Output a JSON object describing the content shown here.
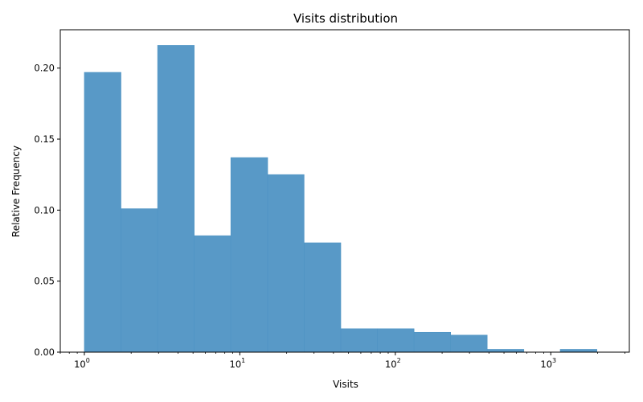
{
  "chart_data": {
    "type": "bar",
    "title": "Visits distribution",
    "xlabel": "Visits",
    "ylabel": "Relative Frequency",
    "x_scale": "log",
    "xlim": [
      0.7,
      3200
    ],
    "ylim": [
      0,
      0.227
    ],
    "color": "#4f94c4",
    "bins": [
      {
        "x0": 1.0,
        "x1": 1.72,
        "value": 0.197
      },
      {
        "x0": 1.72,
        "x1": 2.96,
        "value": 0.101
      },
      {
        "x0": 2.96,
        "x1": 5.09,
        "value": 0.216
      },
      {
        "x0": 5.09,
        "x1": 8.75,
        "value": 0.082
      },
      {
        "x0": 8.75,
        "x1": 15.1,
        "value": 0.137
      },
      {
        "x0": 15.1,
        "x1": 25.9,
        "value": 0.125
      },
      {
        "x0": 25.9,
        "x1": 44.6,
        "value": 0.077
      },
      {
        "x0": 44.6,
        "x1": 76.7,
        "value": 0.0165
      },
      {
        "x0": 76.7,
        "x1": 132,
        "value": 0.0165
      },
      {
        "x0": 132,
        "x1": 227,
        "value": 0.014
      },
      {
        "x0": 227,
        "x1": 390,
        "value": 0.012
      },
      {
        "x0": 390,
        "x1": 671,
        "value": 0.002
      },
      {
        "x0": 671,
        "x1": 1150,
        "value": 0.0
      },
      {
        "x0": 1150,
        "x1": 1980,
        "value": 0.002
      }
    ],
    "yticks": [
      {
        "value": 0.0,
        "label": "0.00"
      },
      {
        "value": 0.05,
        "label": "0.05"
      },
      {
        "value": 0.1,
        "label": "0.10"
      },
      {
        "value": 0.15,
        "label": "0.15"
      },
      {
        "value": 0.2,
        "label": "0.20"
      }
    ],
    "xticks_major": [
      {
        "value": 1,
        "base": "10",
        "exp": "0"
      },
      {
        "value": 10,
        "base": "10",
        "exp": "1"
      },
      {
        "value": 100,
        "base": "10",
        "exp": "2"
      },
      {
        "value": 1000,
        "base": "10",
        "exp": "3"
      }
    ],
    "grid": false,
    "legend": "none"
  }
}
